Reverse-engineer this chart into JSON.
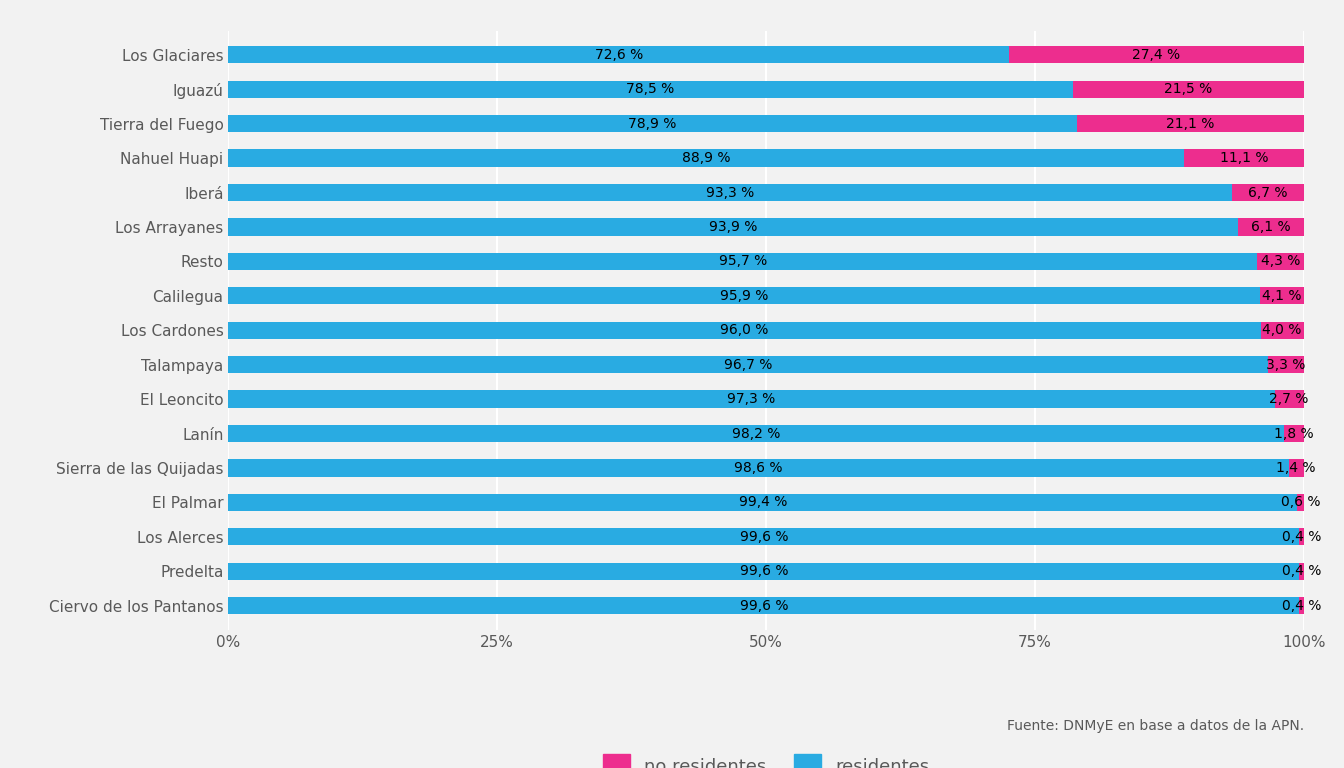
{
  "categories": [
    "Ciervo de los Pantanos",
    "Predelta",
    "Los Alerces",
    "El Palmar",
    "Sierra de las Quijadas",
    "Lanín",
    "El Leoncito",
    "Talampaya",
    "Los Cardones",
    "Calilegua",
    "Resto",
    "Los Arrayanes",
    "Iberá",
    "Nahuel Huapi",
    "Tierra del Fuego",
    "Iguazú",
    "Los Glaciares"
  ],
  "residentes": [
    99.6,
    99.6,
    99.6,
    99.4,
    98.6,
    98.2,
    97.3,
    96.7,
    96.0,
    95.9,
    95.7,
    93.9,
    93.3,
    88.9,
    78.9,
    78.5,
    72.6
  ],
  "no_residentes": [
    0.4,
    0.4,
    0.4,
    0.6,
    1.4,
    1.8,
    2.7,
    3.3,
    4.0,
    4.1,
    4.3,
    6.1,
    6.7,
    11.1,
    21.1,
    21.5,
    27.4
  ],
  "color_residentes": "#29ABE2",
  "color_no_residentes": "#ED2D8E",
  "background_color": "#F2F2F2",
  "label_residentes": "residentes",
  "label_no_residentes": "no residentes",
  "source_text": "Fuente: DNMyE en base a datos de la APN.",
  "bar_height": 0.5,
  "label_fontsize": 10,
  "tick_fontsize": 11,
  "legend_fontsize": 13,
  "source_fontsize": 10,
  "text_color": "#595959"
}
